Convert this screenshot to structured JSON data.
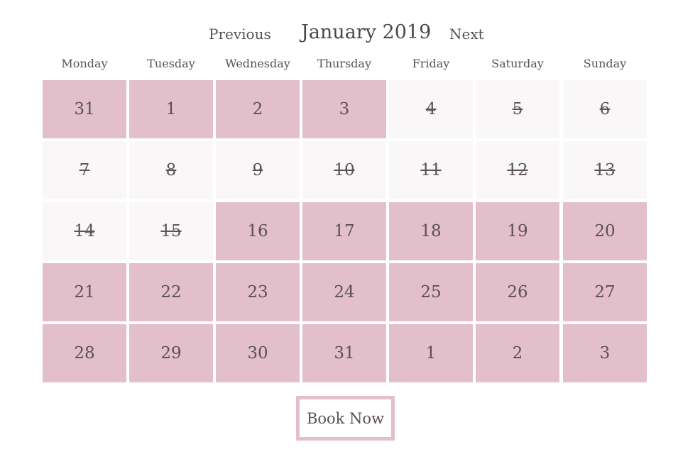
{
  "header": {
    "prev_label": "Previous",
    "title": "January 2019",
    "next_label": "Next"
  },
  "weekdays": [
    "Monday",
    "Tuesday",
    "Wednesday",
    "Thursday",
    "Friday",
    "Saturday",
    "Sunday"
  ],
  "weeks": [
    [
      {
        "day": "31",
        "status": "available"
      },
      {
        "day": "1",
        "status": "available"
      },
      {
        "day": "2",
        "status": "available"
      },
      {
        "day": "3",
        "status": "available"
      },
      {
        "day": "4",
        "status": "unavailable"
      },
      {
        "day": "5",
        "status": "unavailable"
      },
      {
        "day": "6",
        "status": "unavailable"
      }
    ],
    [
      {
        "day": "7",
        "status": "unavailable"
      },
      {
        "day": "8",
        "status": "unavailable"
      },
      {
        "day": "9",
        "status": "unavailable"
      },
      {
        "day": "10",
        "status": "unavailable"
      },
      {
        "day": "11",
        "status": "unavailable"
      },
      {
        "day": "12",
        "status": "unavailable"
      },
      {
        "day": "13",
        "status": "unavailable"
      }
    ],
    [
      {
        "day": "14",
        "status": "unavailable"
      },
      {
        "day": "15",
        "status": "unavailable"
      },
      {
        "day": "16",
        "status": "available"
      },
      {
        "day": "17",
        "status": "available"
      },
      {
        "day": "18",
        "status": "available"
      },
      {
        "day": "19",
        "status": "available"
      },
      {
        "day": "20",
        "status": "available"
      }
    ],
    [
      {
        "day": "21",
        "status": "available"
      },
      {
        "day": "22",
        "status": "available"
      },
      {
        "day": "23",
        "status": "available"
      },
      {
        "day": "24",
        "status": "available"
      },
      {
        "day": "25",
        "status": "available"
      },
      {
        "day": "26",
        "status": "available"
      },
      {
        "day": "27",
        "status": "available"
      }
    ],
    [
      {
        "day": "28",
        "status": "available"
      },
      {
        "day": "29",
        "status": "available"
      },
      {
        "day": "30",
        "status": "available"
      },
      {
        "day": "31",
        "status": "available"
      },
      {
        "day": "1",
        "status": "available"
      },
      {
        "day": "2",
        "status": "available"
      },
      {
        "day": "3",
        "status": "available"
      }
    ]
  ],
  "book_button": {
    "label": "Book Now"
  },
  "colors": {
    "available": "#e2bfca",
    "unavailable": "#faf7f8",
    "text": "#5a5055"
  }
}
